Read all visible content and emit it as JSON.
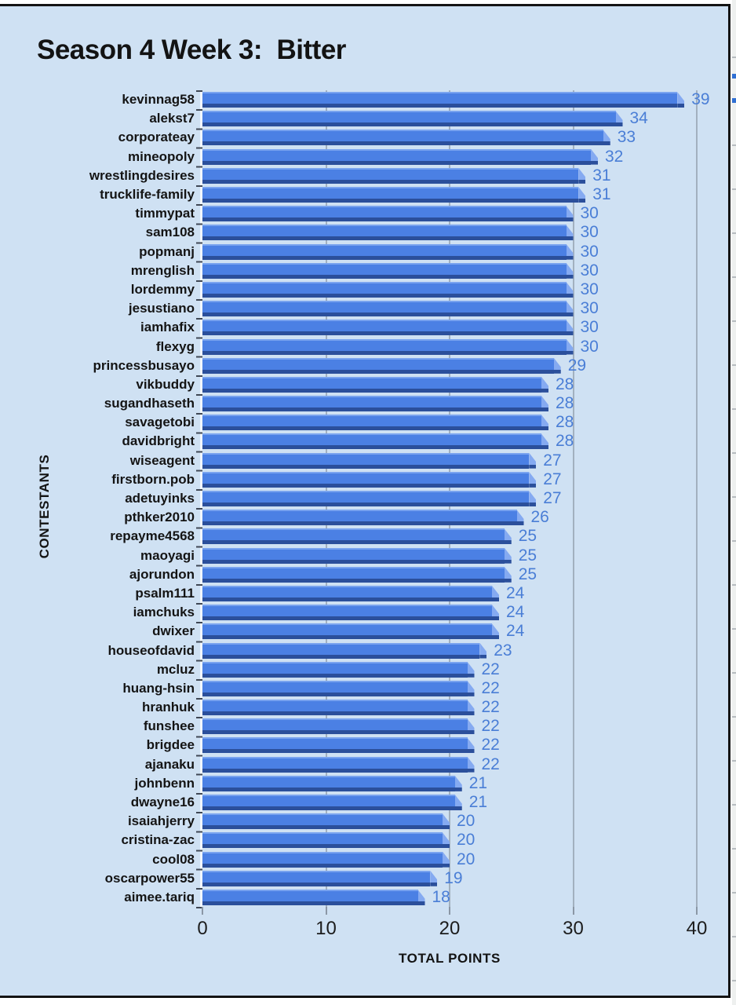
{
  "title": "Season 4 Week 3:  Bitter",
  "chart_data": {
    "type": "bar",
    "orientation": "horizontal",
    "title": "Season 4 Week 3:  Bitter",
    "xlabel": "TOTAL POINTS",
    "ylabel": "CONTESTANTS",
    "xlim": [
      0,
      42
    ],
    "xticks": [
      0,
      10,
      20,
      30,
      40
    ],
    "grid": true,
    "value_labels": true,
    "legend": false,
    "categories": [
      "kevinnag58",
      "alekst7",
      "corporateay",
      "mineopoly",
      "wrestlingdesires",
      "trucklife-family",
      "timmypat",
      "sam108",
      "popmanj",
      "mrenglish",
      "lordemmy",
      "jesustiano",
      "iamhafix",
      "flexyg",
      "princessbusayo",
      "vikbuddy",
      "sugandhaseth",
      "savagetobi",
      "davidbright",
      "wiseagent",
      "firstborn.pob",
      "adetuyinks",
      "pthker2010",
      "repayme4568",
      "maoyagi",
      "ajorundon",
      "psalm111",
      "iamchuks",
      "dwixer",
      "houseofdavid",
      "mcluz",
      "huang-hsin",
      "hranhuk",
      "funshee",
      "brigdee",
      "ajanaku",
      "johnbenn",
      "dwayne16",
      "isaiahjerry",
      "cristina-zac",
      "cool08",
      "oscarpower55",
      "aimee.tariq"
    ],
    "values": [
      39,
      34,
      33,
      32,
      31,
      31,
      30,
      30,
      30,
      30,
      30,
      30,
      30,
      30,
      29,
      28,
      28,
      28,
      28,
      27,
      27,
      27,
      26,
      25,
      25,
      25,
      24,
      24,
      24,
      23,
      22,
      22,
      22,
      22,
      22,
      22,
      21,
      21,
      20,
      20,
      20,
      19,
      18
    ],
    "colors": {
      "background": "#cfe1f3",
      "bar_main": "#4b80e4",
      "bar_highlight": "#79a3ef",
      "bar_cap": "#85aaf1",
      "bar_shadow": "#2b4f9b",
      "value_label": "#4a7ed6",
      "gridline": "#a2b0bf",
      "text": "#131313"
    }
  }
}
